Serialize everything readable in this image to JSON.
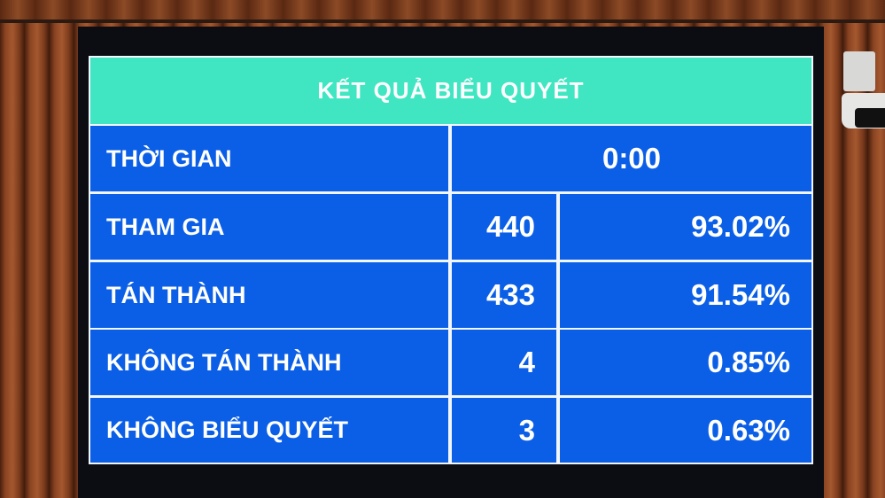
{
  "board": {
    "title": "KẾT QUẢ BIỂU QUYẾT",
    "time_label": "THỜI GIAN",
    "time_value": "0:00",
    "rows": [
      {
        "label": "THAM GIA",
        "count": "440",
        "percent": "93.02%"
      },
      {
        "label": "TÁN THÀNH",
        "count": "433",
        "percent": "91.54%"
      },
      {
        "label": "KHÔNG TÁN THÀNH",
        "count": "4",
        "percent": "0.85%"
      },
      {
        "label": "KHÔNG BIỂU QUYẾT",
        "count": "3",
        "percent": "0.63%"
      }
    ]
  },
  "colors": {
    "header": "#40e6c2",
    "cells": "#0b5fe6",
    "text": "#ffffff"
  }
}
